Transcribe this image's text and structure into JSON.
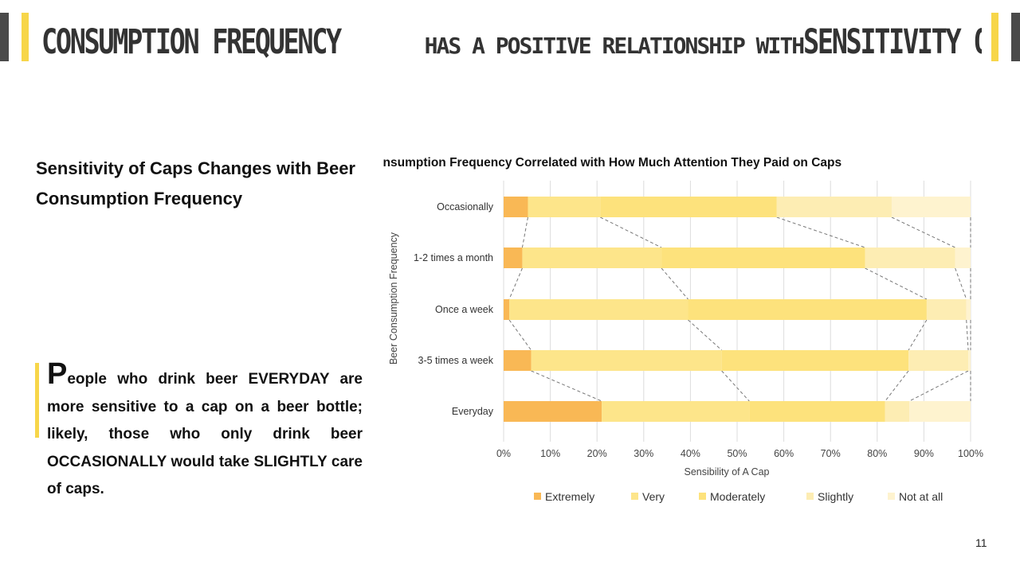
{
  "title": {
    "part1": "Consumption frequency",
    "part2": "has a positive relationship with",
    "part3": "Sensitivity of caps"
  },
  "subtitle": "Sensitivity of Caps Changes with Beer Consumption Frequency",
  "body": {
    "dropcap": "P",
    "text": "eople who drink beer EVERYDAY are more sensitive to a cap on a beer bottle; likely, those who only drink beer OCCASIONALLY would take SLIGHTLY care of caps."
  },
  "page_number": "11",
  "colors": {
    "accent": "#f7d64a",
    "dark": "#4a4a4a",
    "series": [
      "#f9b855",
      "#fde58a",
      "#fde27c",
      "#fdedb3",
      "#fef3cf"
    ]
  },
  "chart_data": {
    "type": "bar",
    "orientation": "horizontal",
    "stacked": "100%",
    "title": "Consumption Frequency Correlated with How Much Attention They Paid on Caps",
    "xlabel": "Sensibility of A Cap",
    "ylabel": "Beer Consumption Frequency",
    "categories": [
      "Occasionally",
      "1-2 times a month",
      "Once a week",
      "3-5 times a week",
      "Everyday"
    ],
    "xlim": [
      0,
      100
    ],
    "xticks": [
      "0%",
      "10%",
      "20%",
      "30%",
      "40%",
      "50%",
      "60%",
      "70%",
      "80%",
      "90%",
      "100%"
    ],
    "series": [
      {
        "name": "Extremely",
        "values": [
          5.2,
          4.0,
          1.2,
          5.9,
          21.0
        ]
      },
      {
        "name": "Very",
        "values": [
          15.5,
          29.8,
          38.3,
          40.8,
          31.6
        ]
      },
      {
        "name": "Moderately",
        "values": [
          37.8,
          43.6,
          51.1,
          40.0,
          29.1
        ]
      },
      {
        "name": "Slightly",
        "values": [
          24.6,
          19.3,
          8.5,
          12.8,
          5.2
        ]
      },
      {
        "name": "Not at all",
        "values": [
          16.9,
          3.3,
          0.9,
          0.5,
          13.1
        ]
      }
    ],
    "grid": true,
    "legend": "bottom"
  }
}
